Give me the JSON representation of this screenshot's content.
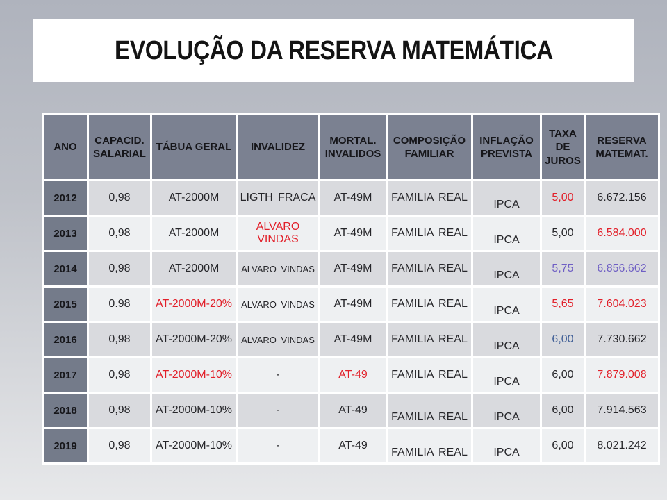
{
  "title": "EVOLUÇÃO DA RESERVA MATEMÁTICA",
  "colors": {
    "red": "#e2202a",
    "purple": "#6f5fc4",
    "blue": "#3f5e96",
    "header_bg": "#7b8191",
    "year_bg": "#747b8a",
    "row_odd": "#d9dade",
    "row_even": "#eef0f2"
  },
  "table": {
    "headers": [
      "ANO",
      "CAPACID. SALARIAL",
      "TÁBUA GERAL",
      "INVALIDEZ",
      "MORTAL. INVALIDOS",
      "COMPOSIÇÃO FAMILIAR",
      "INFLAÇÃO PREVISTA",
      "TAXA DE JUROS",
      "RESERVA MATEMAT."
    ],
    "rows": [
      {
        "year": "2012",
        "cells": [
          {
            "t": "0,98"
          },
          {
            "t": "AT-2000M"
          },
          {
            "t": "LIGTH FRACA"
          },
          {
            "t": "AT-49M"
          },
          {
            "t": "FAMILIA REAL"
          },
          {
            "t": "IPCA",
            "low": true
          },
          {
            "t": "5,00",
            "c": "red"
          },
          {
            "t": "6.672.156"
          }
        ]
      },
      {
        "year": "2013",
        "cells": [
          {
            "t": "0,98"
          },
          {
            "t": "AT-2000M"
          },
          {
            "t": "ALVARO VINDAS",
            "c": "red"
          },
          {
            "t": "AT-49M"
          },
          {
            "t": "FAMILIA REAL"
          },
          {
            "t": "IPCA",
            "low": true
          },
          {
            "t": "5,00"
          },
          {
            "t": "6.584.000",
            "c": "red"
          }
        ]
      },
      {
        "year": "2014",
        "cells": [
          {
            "t": "0,98"
          },
          {
            "t": "AT-2000M"
          },
          {
            "t": "ALVARO VINDAS",
            "small": true
          },
          {
            "t": "AT-49M"
          },
          {
            "t": "FAMILIA REAL"
          },
          {
            "t": "IPCA",
            "low": true
          },
          {
            "t": "5,75",
            "c": "purple"
          },
          {
            "t": "6.856.662",
            "c": "purple"
          }
        ]
      },
      {
        "year": "2015",
        "cells": [
          {
            "t": "0.98"
          },
          {
            "t": "AT-2000M-20%",
            "c": "red"
          },
          {
            "t": "ALVARO VINDAS",
            "small": true
          },
          {
            "t": "AT-49M"
          },
          {
            "t": "FAMILIA REAL"
          },
          {
            "t": "IPCA",
            "low": true
          },
          {
            "t": "5,65",
            "c": "red"
          },
          {
            "t": "7.604.023",
            "c": "red"
          }
        ]
      },
      {
        "year": "2016",
        "cells": [
          {
            "t": "0,98"
          },
          {
            "t": "AT-2000M-20%"
          },
          {
            "t": "ALVARO VINDAS",
            "small": true
          },
          {
            "t": "AT-49M"
          },
          {
            "t": "FAMILIA REAL"
          },
          {
            "t": "IPCA",
            "low": true
          },
          {
            "t": "6,00",
            "c": "blue"
          },
          {
            "t": "7.730.662"
          }
        ]
      },
      {
        "year": "2017",
        "cells": [
          {
            "t": "0,98"
          },
          {
            "t": "AT-2000M-10%",
            "c": "red"
          },
          {
            "t": "-"
          },
          {
            "t": "AT-49",
            "c": "red"
          },
          {
            "t": "FAMILIA REAL"
          },
          {
            "t": "IPCA",
            "low": true
          },
          {
            "t": "6,00"
          },
          {
            "t": "7.879.008",
            "c": "red"
          }
        ]
      },
      {
        "year": "2018",
        "cells": [
          {
            "t": "0,98"
          },
          {
            "t": "AT-2000M-10%"
          },
          {
            "t": "-"
          },
          {
            "t": "AT-49"
          },
          {
            "t": "FAMILIA REAL",
            "low": true
          },
          {
            "t": "IPCA",
            "low": true
          },
          {
            "t": "6,00"
          },
          {
            "t": "7.914.563"
          }
        ]
      },
      {
        "year": "2019",
        "cells": [
          {
            "t": "0,98"
          },
          {
            "t": "AT-2000M-10%"
          },
          {
            "t": "-"
          },
          {
            "t": "AT-49"
          },
          {
            "t": "FAMILIA REAL",
            "low": true
          },
          {
            "t": "IPCA",
            "low": true
          },
          {
            "t": "6,00"
          },
          {
            "t": "8.021.242"
          }
        ]
      }
    ]
  }
}
